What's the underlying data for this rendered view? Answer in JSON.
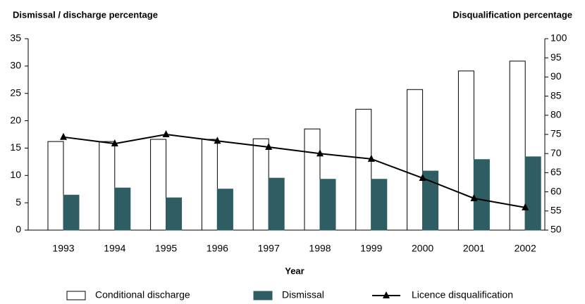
{
  "chart_data": {
    "type": "bar-line",
    "y_label": "Dismissal / discharge percentage",
    "y2_label": "Disqualification percentage",
    "x_label": "Year",
    "categories": [
      "1993",
      "1994",
      "1995",
      "1996",
      "1997",
      "1998",
      "1999",
      "2000",
      "2001",
      "2002"
    ],
    "series": [
      {
        "name": "Conditional discharge",
        "type": "bar",
        "color": "#ffffff",
        "values": [
          16.2,
          16.2,
          16.6,
          16.6,
          16.7,
          18.5,
          22.1,
          25.7,
          29.1,
          30.9
        ]
      },
      {
        "name": "Dismissal",
        "type": "bar",
        "color": "#2e5e63",
        "values": [
          6.4,
          7.7,
          5.9,
          7.5,
          9.5,
          9.3,
          9.3,
          10.8,
          12.9,
          13.4
        ]
      },
      {
        "name": "Licence disqualification",
        "type": "line",
        "axis": "y2",
        "color": "#000000",
        "values": [
          74.3,
          72.6,
          75,
          73.3,
          71.7,
          70,
          68.6,
          63.6,
          58.3,
          55.9
        ]
      }
    ],
    "ylim": [
      0,
      35
    ],
    "yticks": [
      0,
      5,
      10,
      15,
      20,
      25,
      30,
      35
    ],
    "y2lim": [
      50,
      100
    ],
    "y2ticks": [
      50,
      55,
      60,
      65,
      70,
      75,
      80,
      85,
      90,
      95,
      100
    ],
    "grid": false
  }
}
